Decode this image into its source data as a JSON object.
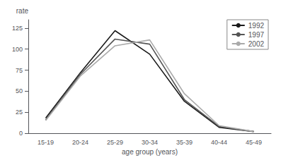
{
  "chart_data": {
    "type": "line",
    "categories": [
      "15-19",
      "20-24",
      "25-29",
      "30-34",
      "35-39",
      "40-44",
      "45-49"
    ],
    "series": [
      {
        "name": "1992",
        "color": "#1a1a1a",
        "values": [
          18,
          72,
          122,
          94,
          38,
          7,
          2
        ]
      },
      {
        "name": "1997",
        "color": "#555555",
        "values": [
          16,
          70,
          112,
          106,
          40,
          8,
          2
        ]
      },
      {
        "name": "2002",
        "color": "#aaaaaa",
        "values": [
          15,
          68,
          104,
          111,
          47,
          9,
          2
        ]
      }
    ],
    "xlabel": "age group (years)",
    "ylabel": "rate",
    "ylim": [
      0,
      135
    ],
    "yticks": [
      0,
      25,
      50,
      75,
      100,
      125
    ],
    "grid": false,
    "legend": "upper right"
  }
}
